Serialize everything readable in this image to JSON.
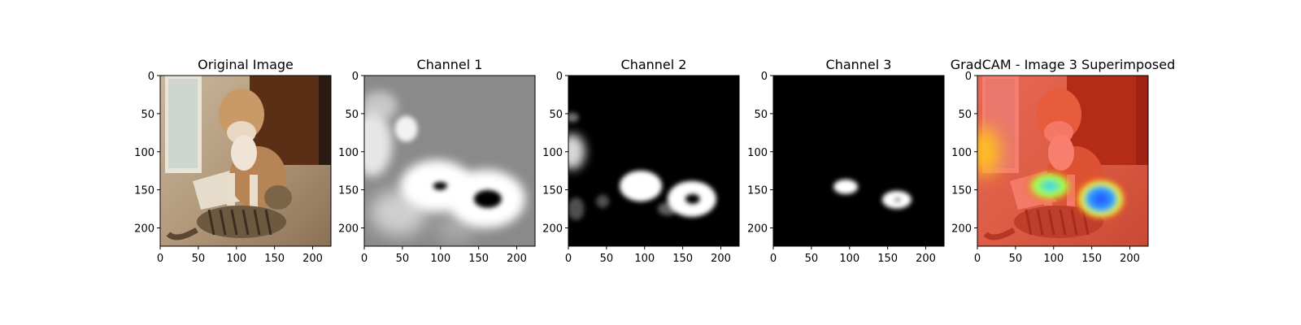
{
  "figure": {
    "panels": [
      {
        "title": "Original Image",
        "kind": "photo",
        "description": ""
      },
      {
        "title": "Channel 1",
        "kind": "channel",
        "background": "#8a8a8a",
        "blob_color": "#ffffff",
        "hole_color": "#000000"
      },
      {
        "title": "Channel 2",
        "kind": "channel",
        "background": "#000000",
        "blob_color": "#ffffff",
        "hole_color": "#000000"
      },
      {
        "title": "Channel 3",
        "kind": "channel",
        "background": "#000000",
        "blob_color": "#ffffff",
        "hole_color": "#000000"
      },
      {
        "title": "GradCAM - Image 3 Superimposed",
        "kind": "gradcam",
        "overlay_color": "#ff2a1a",
        "hot_color": "#2a4bff"
      }
    ],
    "x_ticks": [
      "0",
      "50",
      "100",
      "150",
      "200"
    ],
    "y_ticks": [
      "0",
      "50",
      "100",
      "150",
      "200"
    ],
    "axis_range": [
      0,
      224
    ]
  }
}
